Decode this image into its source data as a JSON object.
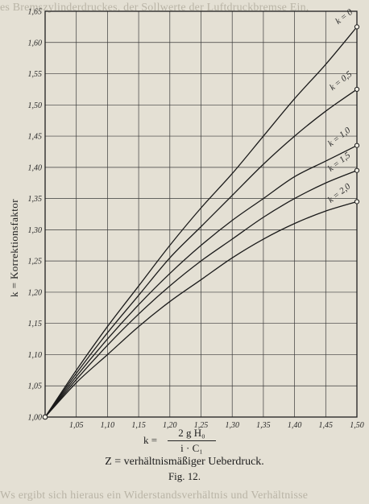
{
  "page_text": {
    "bleed_top": "es Bremszylinderdruckes, der Sollwerte der Luftdruckbremse Ein,",
    "bleed_bottom": "Ws ergibt sich hieraus ein Widerstandsverhältnis und Verhältnisse"
  },
  "chart_data": {
    "type": "line",
    "title": "",
    "xlabel": "",
    "ylabel": "k = Korrektionsfaktor",
    "xlim": [
      1.0,
      1.5
    ],
    "ylim": [
      1.0,
      1.65
    ],
    "x_ticks": [
      "1,00",
      "1,05",
      "1,10",
      "1,15",
      "1,20",
      "1,25",
      "1,30",
      "1,35",
      "1,40",
      "1,45",
      "1,50"
    ],
    "y_ticks": [
      "1,00",
      "1,05",
      "1,10",
      "1,15",
      "1,20",
      "1,25",
      "1,30",
      "1,35",
      "1,40",
      "1,45",
      "1,50",
      "1,55",
      "1,60",
      "1,65"
    ],
    "grid": true,
    "series": [
      {
        "name": "k = 0",
        "x": [
          1.0,
          1.05,
          1.1,
          1.15,
          1.2,
          1.25,
          1.3,
          1.35,
          1.4,
          1.45,
          1.5
        ],
        "y": [
          1.0,
          1.075,
          1.145,
          1.21,
          1.275,
          1.335,
          1.39,
          1.45,
          1.51,
          1.565,
          1.625
        ]
      },
      {
        "name": "k = 0,5",
        "x": [
          1.0,
          1.05,
          1.1,
          1.15,
          1.2,
          1.25,
          1.3,
          1.35,
          1.4,
          1.45,
          1.5
        ],
        "y": [
          1.0,
          1.07,
          1.135,
          1.195,
          1.255,
          1.305,
          1.355,
          1.405,
          1.45,
          1.49,
          1.525
        ]
      },
      {
        "name": "k = 1,0",
        "x": [
          1.0,
          1.05,
          1.1,
          1.15,
          1.2,
          1.25,
          1.3,
          1.35,
          1.4,
          1.45,
          1.5
        ],
        "y": [
          1.0,
          1.065,
          1.125,
          1.18,
          1.23,
          1.275,
          1.315,
          1.35,
          1.385,
          1.41,
          1.435
        ]
      },
      {
        "name": "k = 1,5",
        "x": [
          1.0,
          1.05,
          1.1,
          1.15,
          1.2,
          1.25,
          1.3,
          1.35,
          1.4,
          1.45,
          1.5
        ],
        "y": [
          1.0,
          1.06,
          1.115,
          1.165,
          1.21,
          1.25,
          1.285,
          1.32,
          1.35,
          1.375,
          1.395
        ]
      },
      {
        "name": "k = 2,0",
        "x": [
          1.0,
          1.05,
          1.1,
          1.15,
          1.2,
          1.25,
          1.3,
          1.35,
          1.4,
          1.45,
          1.5
        ],
        "y": [
          1.0,
          1.055,
          1.1,
          1.145,
          1.185,
          1.22,
          1.255,
          1.285,
          1.31,
          1.33,
          1.345
        ]
      }
    ]
  },
  "formula": {
    "lhs": "k =",
    "numerator": "2 g H₀",
    "denominator": "i · C₁"
  },
  "caption": {
    "line1": "Z = verhältnismäßiger Ueberdruck.",
    "line2": "Fig. 12."
  }
}
